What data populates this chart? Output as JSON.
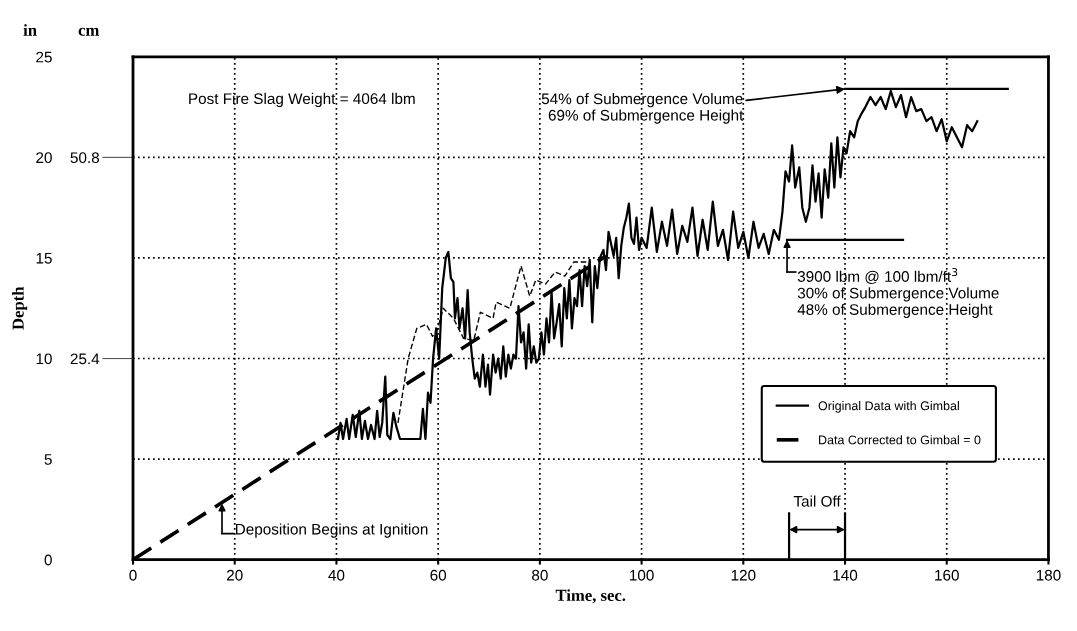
{
  "chart_data": {
    "type": "line",
    "xlabel": "Time, sec.",
    "ylabel": "Depth",
    "xlim": [
      0,
      180
    ],
    "xticks": [
      0,
      20,
      40,
      60,
      80,
      100,
      120,
      140,
      160,
      180
    ],
    "ylim": [
      0,
      25
    ],
    "yticks": [
      0,
      5,
      10,
      15,
      20,
      25
    ],
    "y2lim": [
      0,
      63.5
    ],
    "y2ticks": [
      25.4,
      50.8
    ],
    "grid": true,
    "legend": "right",
    "series": [
      {
        "name": "Original Data with Gimbal",
        "color": "#000000",
        "line_style": "solid",
        "x": [
          40.3,
          40.8,
          41.3,
          42,
          42.5,
          43.2,
          43.8,
          44.5,
          45,
          45.6,
          46.2,
          46.8,
          47.5,
          48,
          48.5,
          49,
          49.6,
          50,
          50.6,
          51.2,
          51.8,
          52.5,
          53.5,
          55,
          56.5,
          57,
          57.5,
          58,
          58.5,
          59,
          59.6,
          60.2,
          60.8,
          61.5,
          62,
          62.5,
          63,
          63.3,
          63.8,
          64.2,
          64.8,
          65.3,
          65.8,
          66.2,
          66.7,
          67.2,
          67.7,
          68.2,
          68.8,
          69.3,
          69.8,
          70.2,
          70.8,
          71.3,
          71.8,
          72.3,
          72.8,
          73.3,
          73.8,
          74.3,
          74.8,
          75.3,
          75.8,
          76.3,
          76.8,
          77.3,
          77.8,
          78.3,
          78.8,
          79.3,
          79.8,
          80.3,
          80.8,
          81.3,
          81.8,
          82.3,
          82.8,
          83.3,
          83.8,
          84.3,
          84.8,
          85.3,
          85.8,
          86.3,
          86.8,
          87.3,
          87.8,
          88.3,
          88.8,
          89.3,
          89.8,
          90.3,
          90.8,
          91.3,
          91.8,
          92.5,
          93,
          93.5,
          94,
          94.5,
          95,
          95.5,
          96,
          96.5,
          97,
          97.5,
          98,
          98.5,
          99,
          99.5,
          100,
          101,
          102,
          103,
          104,
          105,
          106,
          107,
          108,
          109,
          110,
          111,
          112,
          113,
          114,
          115,
          116,
          117,
          118,
          119,
          120,
          121,
          122,
          123,
          124,
          125,
          126,
          127,
          127.7,
          128.3,
          129,
          129.6,
          130.2,
          131,
          131.6,
          132.3,
          133,
          133.6,
          134.2,
          134.8,
          135.4,
          136,
          136.7,
          137.3,
          137.9,
          138.5,
          139.1,
          139.7,
          140.3,
          141,
          141.8,
          142.5,
          143.3,
          144,
          145,
          146,
          147,
          148,
          149,
          150,
          151,
          152,
          153,
          154,
          155,
          156,
          157,
          158,
          159,
          160,
          161,
          162,
          163,
          164,
          165,
          166
        ],
        "values": [
          6.0,
          6.8,
          6.0,
          7.0,
          6.0,
          7.2,
          6.1,
          7.4,
          6.0,
          6.9,
          6.0,
          6.7,
          6.0,
          7.4,
          6.1,
          6.8,
          9.1,
          6.2,
          6.0,
          7.3,
          6.6,
          6.0,
          6.0,
          6.0,
          6.0,
          7.5,
          6.0,
          8.3,
          7.8,
          10,
          11.5,
          10,
          13.5,
          15.0,
          15.3,
          14.0,
          13.8,
          12.0,
          13.0,
          11.5,
          12.5,
          11.0,
          13.4,
          11.3,
          10.0,
          9.0,
          9.3,
          8.6,
          10.2,
          8.6,
          9.7,
          8.2,
          10.2,
          9.3,
          10.0,
          9.0,
          10.6,
          9.1,
          10.2,
          9.5,
          10.2,
          10.0,
          12.6,
          10.8,
          11.3,
          9.5,
          11.7,
          9.8,
          10.6,
          9.8,
          10.0,
          11.3,
          10.2,
          12.0,
          10.8,
          13.3,
          11.0,
          11.8,
          12.7,
          10.6,
          13.5,
          12.0,
          13.9,
          11.5,
          13.0,
          12.6,
          14.4,
          12.6,
          14.6,
          13.6,
          14.9,
          11.8,
          14.6,
          13.5,
          15.0,
          15.4,
          14.4,
          16.3,
          15.7,
          15.1,
          16.0,
          14.0,
          15.6,
          16.5,
          17.0,
          17.7,
          16.0,
          15.7,
          17.0,
          15.4,
          16.0,
          15.5,
          17.5,
          15.3,
          16.8,
          15.6,
          17.4,
          15.2,
          16.6,
          15.8,
          17.5,
          15.1,
          16.9,
          15.4,
          17.8,
          15.6,
          16.4,
          14.9,
          17.3,
          15.5,
          16.3,
          15.0,
          16.8,
          15.5,
          16.2,
          15.2,
          16.4,
          15.9,
          17.3,
          19.3,
          18.8,
          20.6,
          18.5,
          19.5,
          17.5,
          16.8,
          17.5,
          19.6,
          17.8,
          19.2,
          17.0,
          19.4,
          18.0,
          20.7,
          18.5,
          21.0,
          19.0,
          20.5,
          20.2,
          21.3,
          21.0,
          21.8,
          22.2,
          22.5,
          23.0,
          22.6,
          23.0,
          22.4,
          23.3,
          22.5,
          23.1,
          22.0,
          23.0,
          22.3,
          22.4,
          21.8,
          22.0,
          21.3,
          21.9,
          20.8,
          21.5,
          21.0,
          20.5,
          21.6,
          21.3,
          21.8
        ]
      },
      {
        "color": "#000000",
        "line_style": "dashed",
        "x": [
          52.1,
          54.1,
          55.8,
          57.7,
          58.9,
          59.8,
          61,
          63,
          65,
          67,
          68.3,
          70.8,
          71.4,
          74.1,
          76.3,
          78.0,
          79.2,
          81.1,
          83.0,
          84.9,
          86.7,
          89.6
        ],
        "values": [
          6.8,
          10.0,
          11.5,
          11.7,
          11.1,
          11.4,
          12.5,
          12.0,
          11.0,
          10.9,
          12.3,
          12.0,
          12.8,
          12.5,
          14.6,
          13.1,
          13.9,
          13.7,
          14.3,
          14.1,
          14.8,
          14.8
        ]
      },
      {
        "name": "Data Corrected to Gimbal = 0",
        "color": "#000000",
        "line_style": "dashed",
        "x": [
          0,
          93
        ],
        "values": [
          0,
          15.1
        ]
      },
      {
        "color": "#000000",
        "line_style": "solid",
        "x": [
          140,
          172
        ],
        "values": [
          23.4,
          23.4
        ]
      },
      {
        "color": "#000000",
        "line_style": "solid",
        "x": [
          128.6,
          151.4
        ],
        "values": [
          15.9,
          15.9
        ]
      },
      {
        "color": "#000000",
        "line_style": "solid",
        "x": [
          129,
          129
        ],
        "values": [
          0,
          2.3
        ]
      },
      {
        "color": "#000000",
        "line_style": "solid",
        "x": [
          140,
          140
        ],
        "values": [
          0,
          2.3
        ]
      }
    ],
    "annotations": [
      "in",
      "cm",
      "Post Fire Slag Weight = 4064 lbm",
      {
        "text": "54% of Submergence Volume\n69% of Submergence Height",
        "x": 140,
        "y": 23.4
      },
      {
        "text": "3900 lbm @ 100 lbm/ft$^{3}$\n30% of Submergence Volume\n48% of Submergence Height",
        "x": 128.6,
        "y": 15.9
      },
      {
        "text": "Deposition Begins at Ignition",
        "x": 17.5,
        "y": 2.8
      },
      "Tail Off"
    ]
  }
}
